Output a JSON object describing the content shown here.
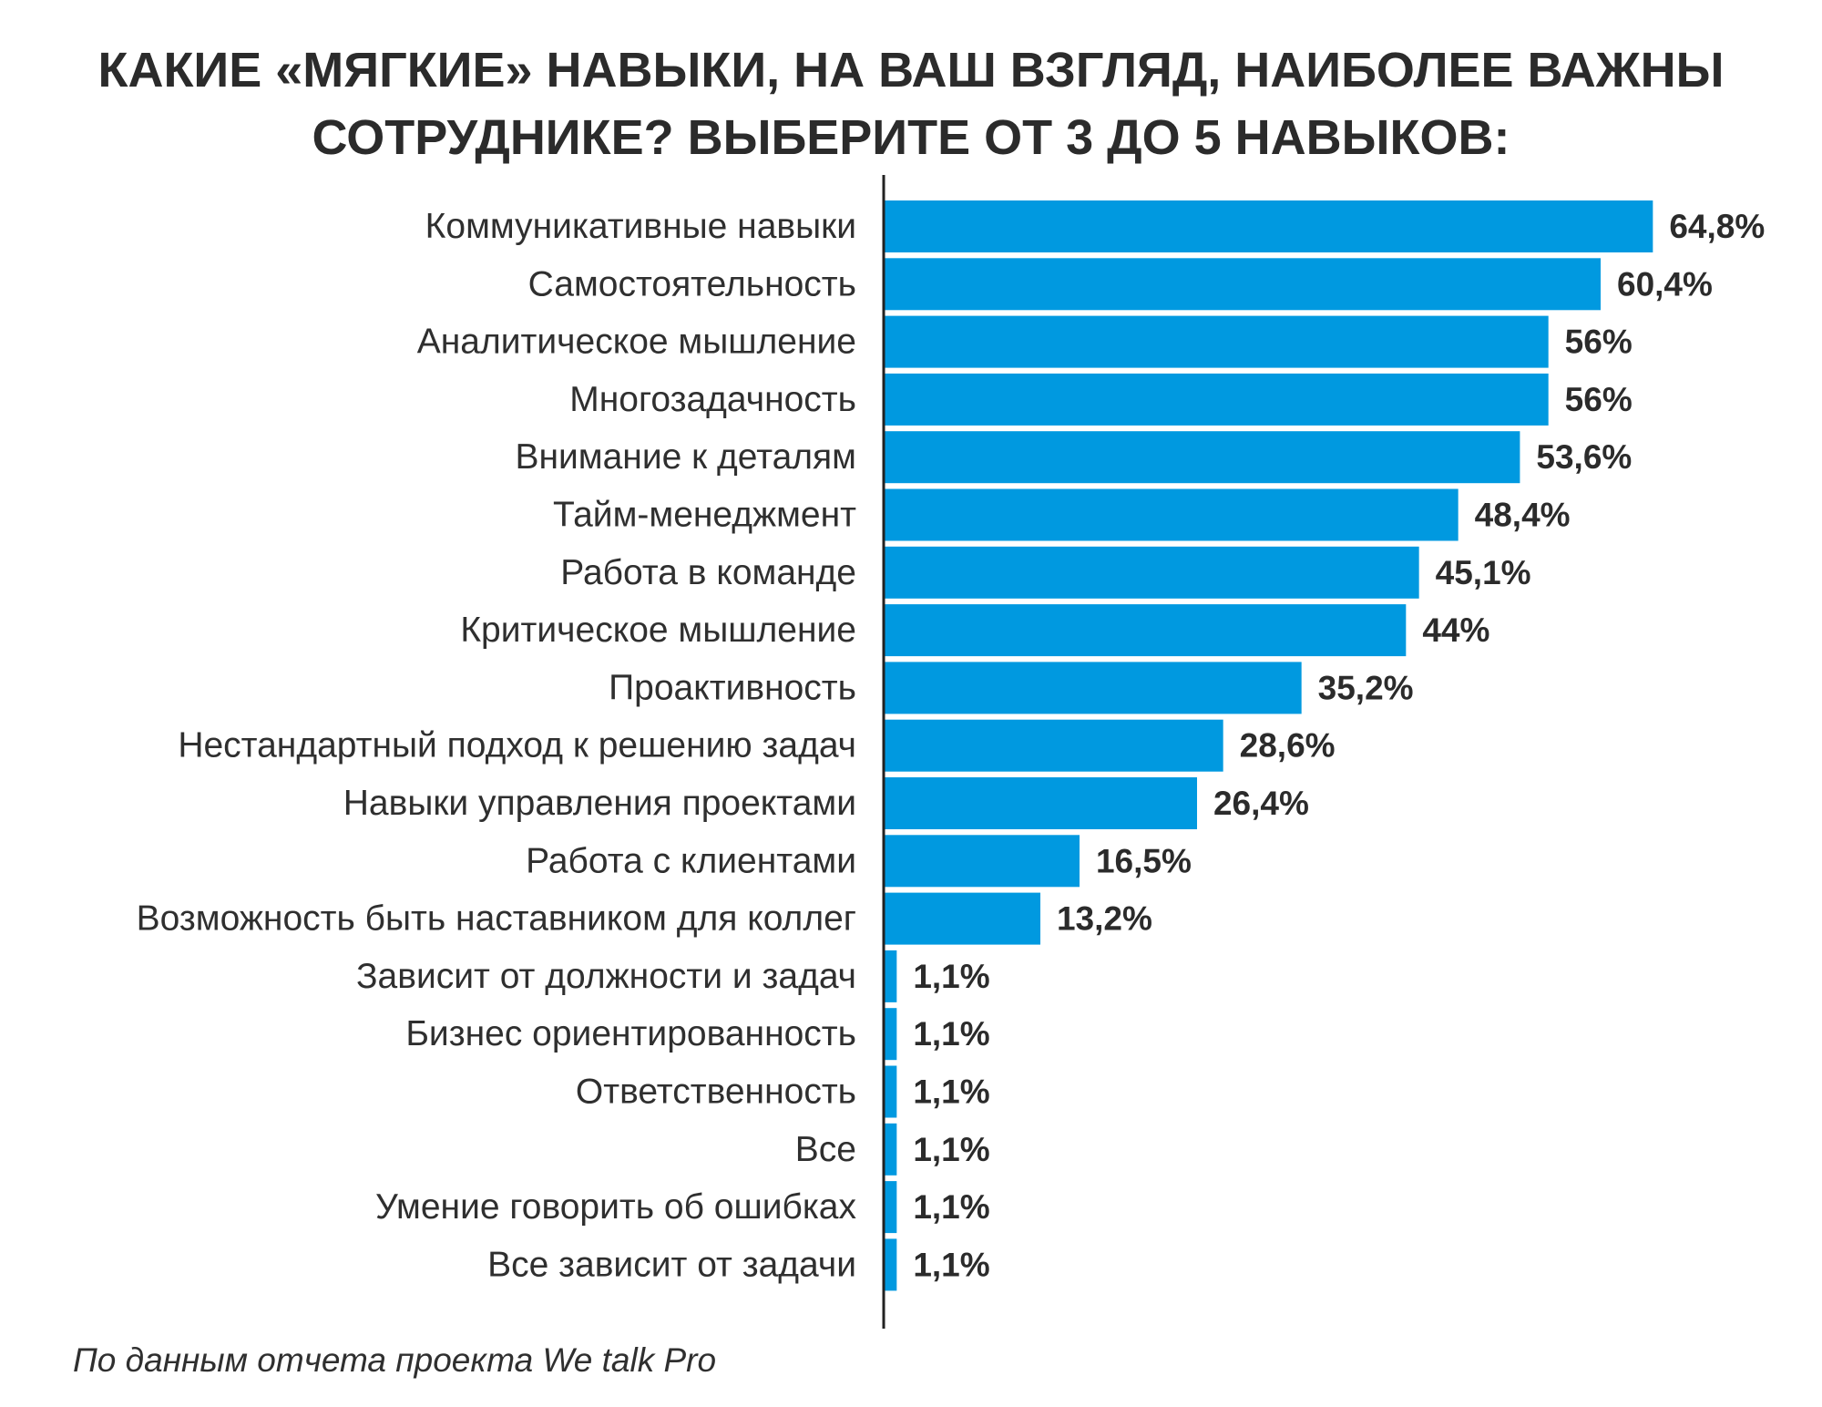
{
  "chart_data": {
    "type": "bar",
    "orientation": "horizontal",
    "title_lines": [
      "КАКИЕ «МЯГКИЕ» НАВЫКИ, НА ВАШ ВЗГЛЯД, НАИБОЛЕЕ ВАЖНЫ",
      "СОТРУДНИКЕ? ВЫБЕРИТЕ ОТ 3 ДО 5 НАВЫКОВ:"
    ],
    "categories": [
      "Коммуникативные навыки",
      "Самостоятельность",
      "Аналитическое мышление",
      "Многозадачность",
      "Внимание к деталям",
      "Тайм-менеджмент",
      "Работа в команде",
      "Критическое мышление",
      "Проактивность",
      "Нестандартный подход к решению задач",
      "Навыки управления проектами",
      "Работа с клиентами",
      "Возможность быть наставником для коллег",
      "Зависит от должности и задач",
      "Бизнес ориентированность",
      "Ответственность",
      "Все",
      "Умение говорить об ошибках",
      "Все зависит от задачи"
    ],
    "values": [
      64.8,
      60.4,
      56,
      56,
      53.6,
      48.4,
      45.1,
      44,
      35.2,
      28.6,
      26.4,
      16.5,
      13.2,
      1.1,
      1.1,
      1.1,
      1.1,
      1.1,
      1.1
    ],
    "value_labels": [
      "64,8%",
      "60,4%",
      "56%",
      "56%",
      "53,6%",
      "48,4%",
      "45,1%",
      "44%",
      "35,2%",
      "28,6%",
      "26,4%",
      "16,5%",
      "13,2%",
      "1,1%",
      "1,1%",
      "1,1%",
      "1,1%",
      "1,1%",
      "1,1%"
    ],
    "unit": "%",
    "xlim": [
      0,
      100
    ],
    "grid": false,
    "legend": "none",
    "bar_color": "#0099e0",
    "axis_color": "#222222",
    "source": "По данным отчета проекта We talk Pro"
  }
}
